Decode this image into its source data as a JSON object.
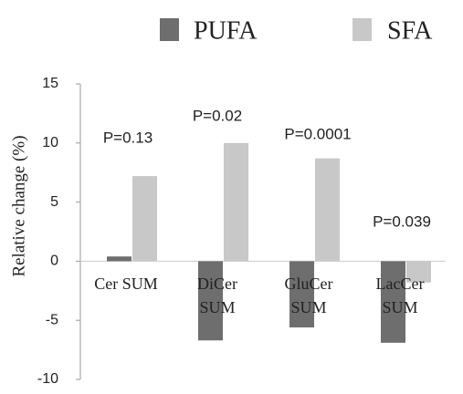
{
  "chart_data": {
    "type": "bar",
    "y_label": "Relative change (%)",
    "categories": [
      "Cer SUM",
      "DiCer SUM",
      "GluCer SUM",
      "LacCer SUM"
    ],
    "series": [
      {
        "name": "PUFA",
        "color": "#6e6e6e",
        "values": [
          0.4,
          -6.7,
          -5.6,
          -6.9
        ]
      },
      {
        "name": "SFA",
        "color": "#c8c8c8",
        "values": [
          7.2,
          10.0,
          8.7,
          -1.8
        ]
      }
    ],
    "annotations": [
      "P=0.13",
      "P=0.02",
      "P=0.0001",
      "P=0.039"
    ],
    "ylim": [
      -10,
      15
    ],
    "yticks": [
      -10,
      -5,
      0,
      5,
      10,
      15
    ],
    "grid": false
  }
}
